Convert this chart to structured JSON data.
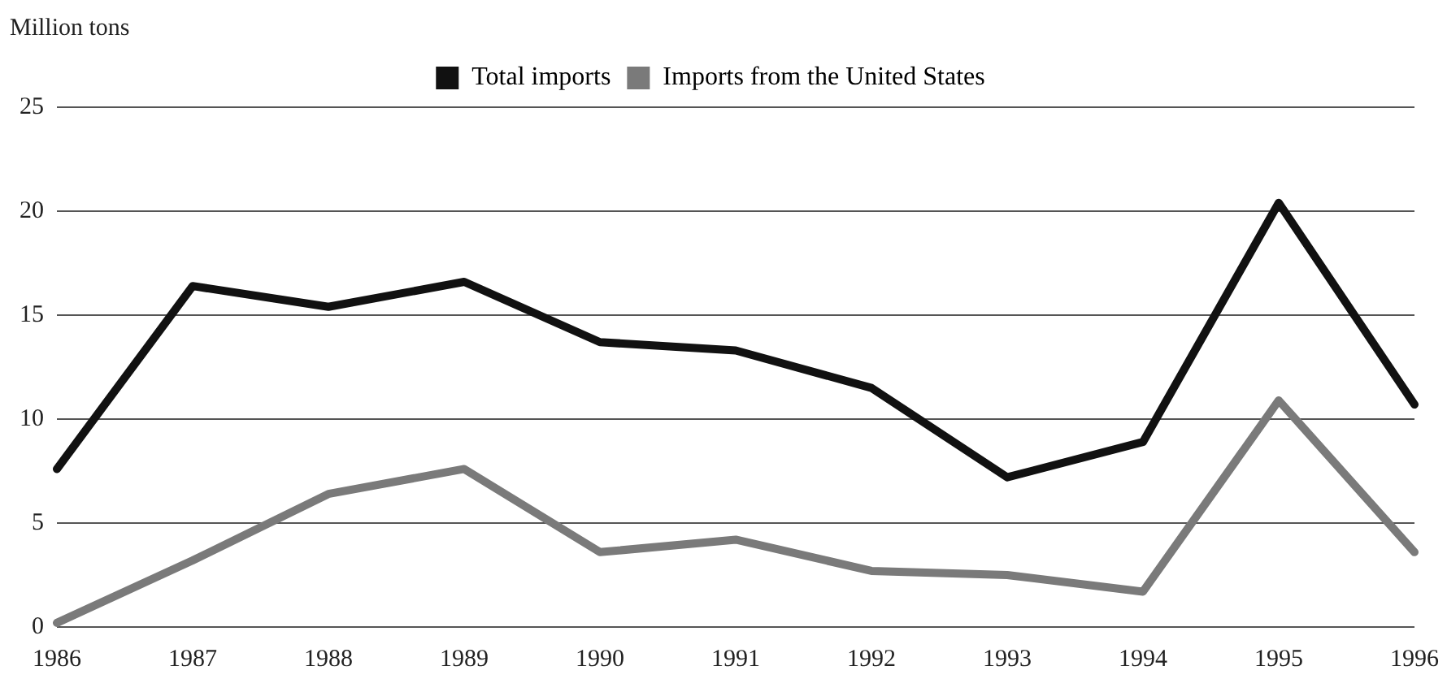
{
  "chart_data": {
    "type": "line",
    "ylabel": "Million tons",
    "categories": [
      "1986",
      "1987",
      "1988",
      "1989",
      "1990",
      "1991",
      "1992",
      "1993",
      "1994",
      "1995",
      "1996"
    ],
    "series": [
      {
        "name": "Total imports",
        "color": "#111111",
        "values": [
          7.6,
          16.4,
          15.4,
          16.6,
          13.7,
          13.3,
          11.5,
          7.2,
          8.9,
          20.4,
          10.7
        ]
      },
      {
        "name": "Imports from the United States",
        "color": "#7a7a7a",
        "values": [
          0.2,
          3.2,
          6.4,
          7.6,
          3.6,
          4.2,
          2.7,
          2.5,
          1.7,
          10.9,
          3.6
        ]
      }
    ],
    "ylim": [
      0,
      25
    ],
    "yticks": [
      0,
      5,
      10,
      15,
      20,
      25
    ],
    "grid": "y",
    "legend": "top",
    "marker": "none",
    "line_style": "solid"
  }
}
